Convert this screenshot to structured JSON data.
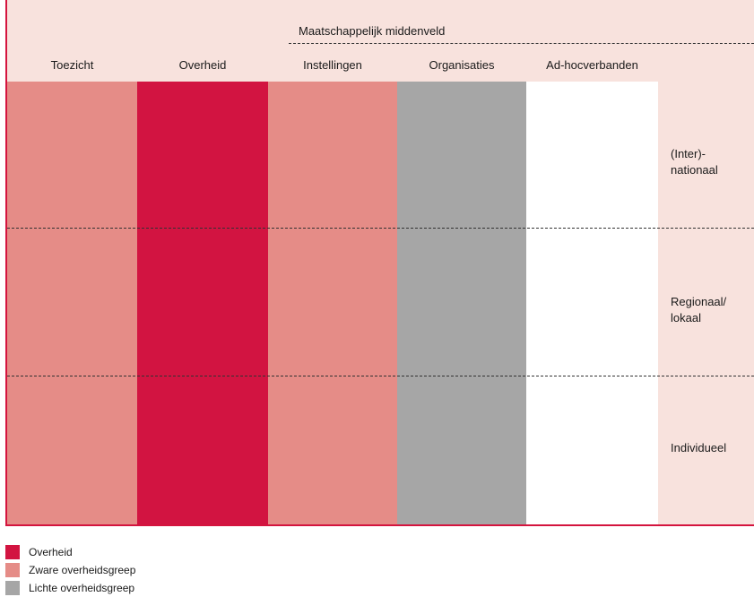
{
  "group_label": "Maatschappelijk middenveld",
  "columns": [
    {
      "label": "Toezicht",
      "color": "#e58c87"
    },
    {
      "label": "Overheid",
      "color": "#d21441"
    },
    {
      "label": "Instellingen",
      "color": "#e58c87"
    },
    {
      "label": "Organisaties",
      "color": "#a6a6a6"
    },
    {
      "label": "Ad-hocverbanden",
      "color": "#ffffff"
    }
  ],
  "rows": [
    {
      "line1": "(Inter)-",
      "line2": "nationaal"
    },
    {
      "line1": "Regionaal/",
      "line2": "lokaal"
    },
    {
      "line1": "Individueel",
      "line2": ""
    }
  ],
  "legend": [
    {
      "label": "Overheid",
      "color": "#d21441"
    },
    {
      "label": "Zware overheidsgreep",
      "color": "#e58c87"
    },
    {
      "label": "Lichte overheidsgreep",
      "color": "#a6a6a6"
    }
  ],
  "colors": {
    "background": "#f8e2dd",
    "border": "#d4143e"
  }
}
